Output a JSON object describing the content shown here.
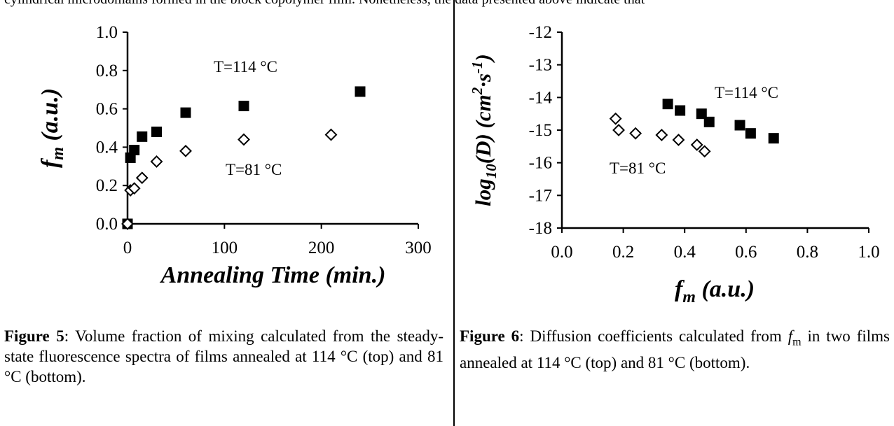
{
  "page_header": "cylindrical microdomains formed in the block copolymer film. Nonetheless, the data presented above indicate that",
  "figures": [
    {
      "caption_label": "Figure 5",
      "caption_text": ": Volume fraction of mixing calculated from the steady-state fluorescence spectra of films annealed at 114 °C (top) and 81 °C (bottom)."
    },
    {
      "caption_label": "Figure 6",
      "caption_pre": ": Diffusion coefficients calculated from ",
      "caption_var": "f",
      "caption_sub": "m",
      "caption_post": " in two films annealed at 114 °C (top) and 81 °C (bottom)."
    }
  ],
  "chart_data": [
    {
      "type": "scatter",
      "xlabel": "Annealing Time (min.)",
      "ylabel_main": "f",
      "ylabel_sub": "m",
      "ylabel_rest": " (a.u.)",
      "xlim": [
        0,
        300
      ],
      "ylim": [
        0,
        1
      ],
      "xticks": [
        0,
        100,
        200,
        300
      ],
      "xtick_labels": [
        "0",
        "100",
        "200",
        "300"
      ],
      "yticks": [
        0,
        0.2,
        0.4,
        0.6,
        0.8,
        1.0
      ],
      "ytick_labels": [
        "0.0",
        "0.2",
        "0.4",
        "0.6",
        "0.8",
        "1.0"
      ],
      "grid": false,
      "annotations": [
        "T=114 °C",
        "T=81 °C"
      ],
      "series": [
        {
          "marker": "filled-square",
          "color": "#000000",
          "x": [
            0,
            3,
            7,
            15,
            30,
            60,
            120,
            240
          ],
          "y": [
            0.0,
            0.345,
            0.385,
            0.455,
            0.48,
            0.58,
            0.615,
            0.69
          ]
        },
        {
          "marker": "open-diamond",
          "color": "#000000",
          "x": [
            0,
            3,
            7,
            15,
            30,
            60,
            120,
            210
          ],
          "y": [
            0.0,
            0.175,
            0.185,
            0.24,
            0.325,
            0.38,
            0.44,
            0.465
          ]
        }
      ]
    },
    {
      "type": "scatter",
      "xlabel_main": "f",
      "xlabel_sub": "m",
      "xlabel_rest": " (a.u.)",
      "ylabel_main": "log",
      "ylabel_sub": "10",
      "ylabel_mid": "(D) (cm",
      "ylabel_sup1": "2",
      "ylabel_mid2": "·s",
      "ylabel_sup2": "-1",
      "ylabel_end": ")",
      "xlim": [
        0,
        1
      ],
      "ylim": [
        -18,
        -12
      ],
      "xticks": [
        0,
        0.2,
        0.4,
        0.6,
        0.8,
        1.0
      ],
      "xtick_labels": [
        "0.0",
        "0.2",
        "0.4",
        "0.6",
        "0.8",
        "1.0"
      ],
      "yticks": [
        -18,
        -17,
        -16,
        -15,
        -14,
        -13,
        -12
      ],
      "ytick_labels": [
        "-18",
        "-17",
        "-16",
        "-15",
        "-14",
        "-13",
        "-12"
      ],
      "grid": false,
      "annotations": [
        "T=114 °C",
        "T=81 °C"
      ],
      "series": [
        {
          "marker": "filled-square",
          "color": "#000000",
          "x": [
            0.345,
            0.385,
            0.455,
            0.48,
            0.58,
            0.615,
            0.69
          ],
          "y": [
            -14.2,
            -14.4,
            -14.5,
            -14.75,
            -14.85,
            -15.1,
            -15.25
          ]
        },
        {
          "marker": "open-diamond",
          "color": "#000000",
          "x": [
            0.175,
            0.185,
            0.24,
            0.325,
            0.38,
            0.44,
            0.465
          ],
          "y": [
            -14.65,
            -15.0,
            -15.1,
            -15.15,
            -15.3,
            -15.45,
            -15.65
          ]
        }
      ]
    }
  ]
}
